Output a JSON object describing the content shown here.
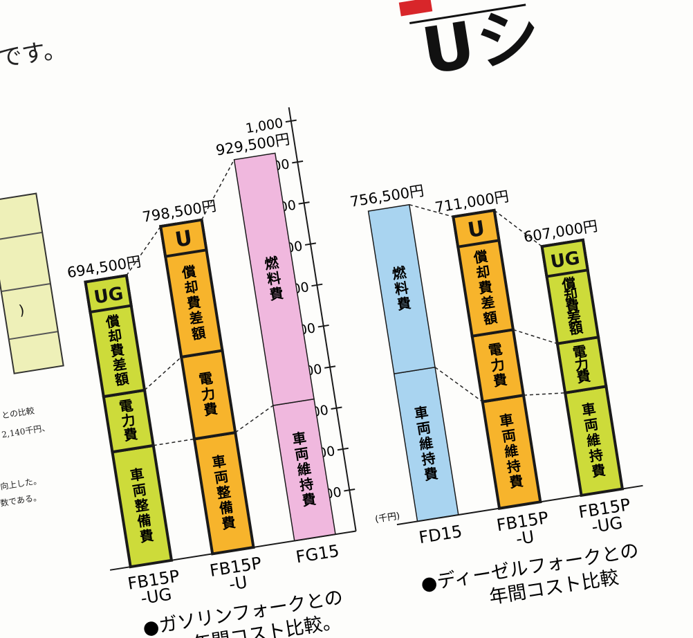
{
  "page": {
    "heading_fragment": "です。",
    "brand_fragment": "Uシ",
    "side_table": {
      "row_fragment": ")",
      "notes": [
        "との比較",
        "2,140千円、",
        "向上した。",
        "数である。"
      ]
    }
  },
  "colors": {
    "ug_bar": "#cddb3a",
    "u_bar": "#f7b42c",
    "gasoline_bar": "#f0b8de",
    "diesel_bar": "#a9d4f0",
    "outline": "#1a1a1a",
    "red_accent": "#d8262a"
  },
  "chart_data": [
    {
      "type": "bar",
      "stacked": true,
      "title": "●ガソリンフォークとの年間コスト比較。",
      "title_lines": [
        "●ガソリンフォークとの",
        "年間コスト比較。"
      ],
      "ylabel": "(千円)",
      "ylim": [
        0,
        1000
      ],
      "yticks": [
        100,
        200,
        300,
        400,
        500,
        600,
        700,
        800,
        900,
        1000
      ],
      "ytick_labels": [
        "100",
        "200",
        "300",
        "400",
        "500",
        "600",
        "700",
        "800",
        "900",
        "1,000"
      ],
      "categories": [
        {
          "name": "FB15P",
          "name2": "-UG",
          "badge": "UG",
          "total": 694.5,
          "total_label": "694,500円",
          "segments": [
            {
              "label": "車両整備費",
              "value": 280
            },
            {
              "label": "電力費",
              "value": 135
            },
            {
              "label": "償却費差額",
              "value": 279.5
            }
          ]
        },
        {
          "name": "FB15P",
          "name2": "-U",
          "badge": "U",
          "total": 798.5,
          "total_label": "798,500円",
          "segments": [
            {
              "label": "車両整備費",
              "value": 280
            },
            {
              "label": "電力費",
              "value": 200
            },
            {
              "label": "償却費差額",
              "value": 318.5
            }
          ]
        },
        {
          "name": "FG15",
          "name2": "",
          "badge": "",
          "total": 929.5,
          "total_label": "929,500円",
          "segments": [
            {
              "label": "車両維持費",
              "value": 330
            },
            {
              "label": "燃料費",
              "value": 599.5
            }
          ]
        }
      ]
    },
    {
      "type": "bar",
      "stacked": true,
      "title": "●ディーゼルフォークとの年間コスト比較",
      "title_lines": [
        "●ディーゼルフォークとの",
        "年間コスト比較"
      ],
      "ylabel": "(千円)",
      "ylim": [
        0,
        1000
      ],
      "categories": [
        {
          "name": "FD15",
          "name2": "",
          "badge": "",
          "total": 756.5,
          "total_label": "756,500円",
          "segments": [
            {
              "label": "車両維持費",
              "value": 360
            },
            {
              "label": "燃料費",
              "value": 396.5
            }
          ]
        },
        {
          "name": "FB15P",
          "name2": "-U",
          "badge": "U",
          "total": 711,
          "total_label": "711,000円",
          "segments": [
            {
              "label": "車両維持費",
              "value": 260
            },
            {
              "label": "電力費",
              "value": 160
            },
            {
              "label": "償却費差額",
              "value": 291
            }
          ]
        },
        {
          "name": "FB15P",
          "name2": "-UG",
          "badge": "UG",
          "total": 607,
          "total_label": "607,000円",
          "segments": [
            {
              "label": "車両維持費",
              "value": 250
            },
            {
              "label": "電力費",
              "value": 120
            },
            {
              "label": "償却費差額",
              "value": 237
            }
          ]
        }
      ]
    }
  ]
}
